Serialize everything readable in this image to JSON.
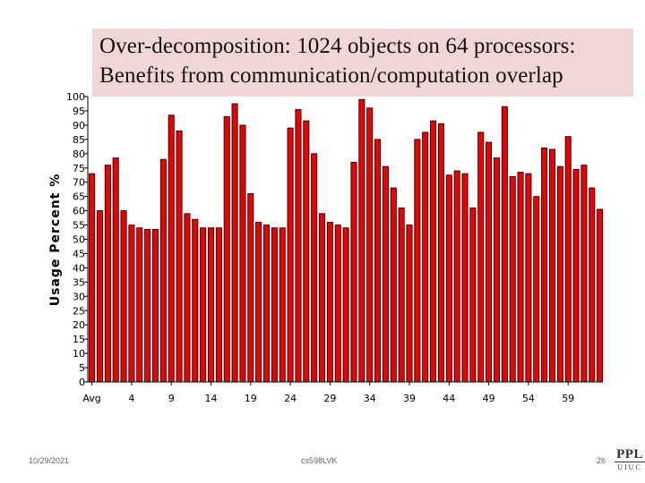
{
  "slide": {
    "title_line_1": "Over-decomposition: 1024 objects on 64 processors:",
    "title_line_2": "Benefits from communication/computation overlap",
    "footer_date": "10/29/2021",
    "footer_course": "cs598LVK",
    "footer_page": "26",
    "logo_main": "PPL",
    "logo_sub": "UIUC"
  },
  "chart_data": {
    "type": "bar",
    "ylabel": "Usage Percent %",
    "xlabel": "",
    "ylim": [
      0,
      100
    ],
    "yticks": [
      0,
      5,
      10,
      15,
      20,
      25,
      30,
      35,
      40,
      45,
      50,
      55,
      60,
      65,
      70,
      75,
      80,
      85,
      90,
      95,
      100
    ],
    "xtick_labels": [
      "Avg",
      "4",
      "9",
      "14",
      "19",
      "24",
      "29",
      "34",
      "39",
      "44",
      "49",
      "54",
      "59"
    ],
    "xtick_indices": [
      0,
      5,
      10,
      15,
      20,
      25,
      30,
      35,
      40,
      45,
      50,
      55,
      60
    ],
    "bar_color": "#ee0000",
    "bar_border_color": "#000000",
    "grid": false,
    "categories": [
      "Avg",
      "0",
      "1",
      "2",
      "3",
      "4",
      "5",
      "6",
      "7",
      "8",
      "9",
      "10",
      "11",
      "12",
      "13",
      "14",
      "15",
      "16",
      "17",
      "18",
      "19",
      "20",
      "21",
      "22",
      "23",
      "24",
      "25",
      "26",
      "27",
      "28",
      "29",
      "30",
      "31",
      "32",
      "33",
      "34",
      "35",
      "36",
      "37",
      "38",
      "39",
      "40",
      "41",
      "42",
      "43",
      "44",
      "45",
      "46",
      "47",
      "48",
      "49",
      "50",
      "51",
      "52",
      "53",
      "54",
      "55",
      "56",
      "57",
      "58",
      "59",
      "60",
      "61",
      "62",
      "63"
    ],
    "values": [
      73,
      60,
      76,
      78.5,
      60,
      55,
      54,
      53.5,
      53.5,
      78,
      93.5,
      88,
      59,
      57,
      54,
      54,
      54,
      93,
      97.5,
      90,
      66,
      56,
      55,
      54,
      54,
      89,
      95.5,
      91.5,
      80,
      59,
      56,
      55,
      54,
      77,
      99,
      96,
      85,
      75.5,
      68,
      61,
      55,
      85,
      87.5,
      91.5,
      90.5,
      72.5,
      74,
      73,
      61,
      87.5,
      84,
      78.5,
      96.5,
      72,
      73.5,
      73,
      65,
      82,
      81.5,
      75.5,
      86,
      74.5,
      76,
      68,
      60.5
    ]
  }
}
